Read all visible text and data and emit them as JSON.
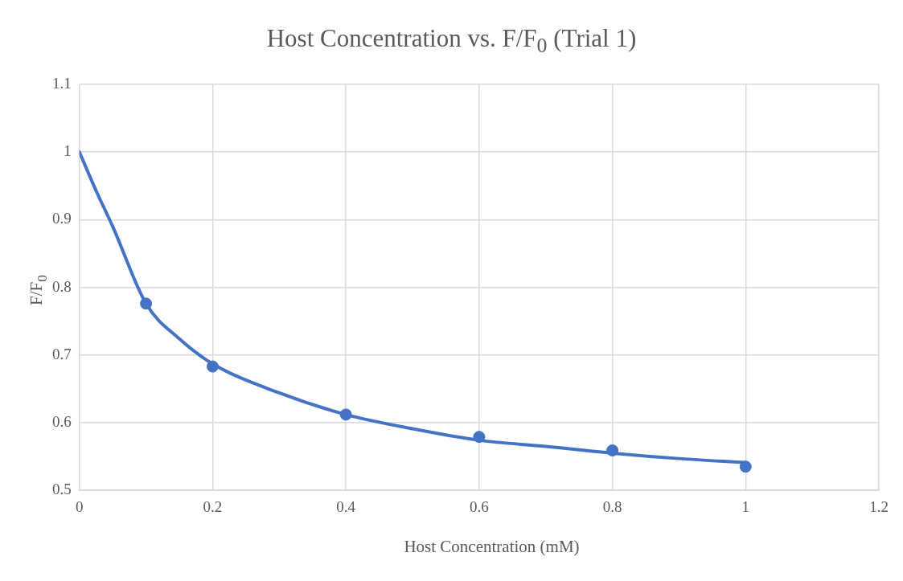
{
  "chart_data": {
    "type": "scatter",
    "title": "Host Concentration vs. F/F$_{0}$ (Trial 1)",
    "xlabel": "Host Concentration (mM)",
    "ylabel": "F/F$_{0}$",
    "xlim": [
      0,
      1.2
    ],
    "xticks": [
      0,
      0.2,
      0.4,
      0.6,
      0.8,
      1,
      1.2
    ],
    "ylim": [
      0.5,
      1.1
    ],
    "yticks": [
      0.5,
      0.6,
      0.7,
      0.8,
      0.9,
      1,
      1.1
    ],
    "grid": true,
    "legend": false,
    "marker": "circle",
    "series": [
      {
        "type": "scatter",
        "color": "#4472c4",
        "x": [
          0.1,
          0.2,
          0.4,
          0.6,
          0.8,
          1
        ],
        "values": [
          0.776,
          0.683,
          0.612,
          0.579,
          0.559,
          0.535
        ]
      },
      {
        "type": "line",
        "color": "#4472c4",
        "marker": "none",
        "line_style": "solid",
        "x": [
          0,
          0.025,
          0.05,
          0.1,
          0.15,
          0.2,
          0.3,
          0.4,
          0.5,
          0.6,
          0.7,
          0.8,
          0.9,
          1
        ],
        "values": [
          1,
          0.943,
          0.89,
          0.776,
          0.724,
          0.687,
          0.644,
          0.612,
          0.591,
          0.574,
          0.565,
          0.555,
          0.547,
          0.541
        ]
      }
    ]
  }
}
